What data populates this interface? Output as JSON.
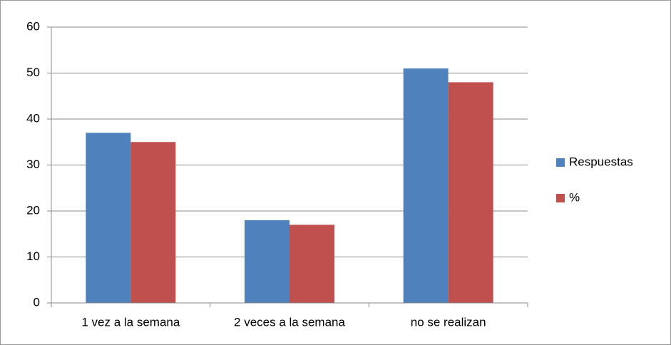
{
  "chart_data": {
    "type": "bar",
    "categories": [
      "1 vez a la semana",
      "2 veces a la semana",
      "no se  realizan"
    ],
    "series": [
      {
        "name": "Respuestas",
        "color": "#4f81bd",
        "values": [
          37,
          18,
          51
        ]
      },
      {
        "name": "%",
        "color": "#c0504d",
        "values": [
          35,
          17,
          48
        ]
      }
    ],
    "ylim": [
      0,
      60
    ],
    "yticks": [
      0,
      10,
      20,
      30,
      40,
      50,
      60
    ],
    "grid": true,
    "legend": "right"
  }
}
